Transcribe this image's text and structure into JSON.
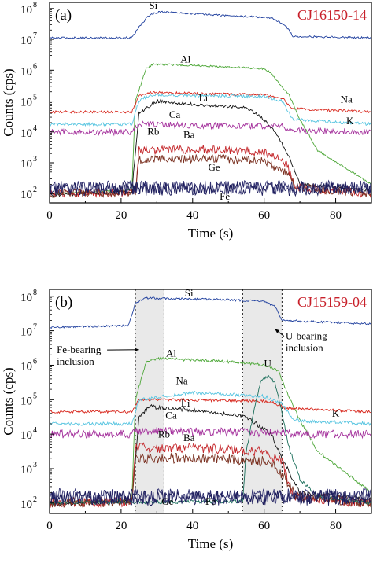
{
  "chart_data": [
    {
      "type": "line",
      "panel_label": "(a)",
      "sample_label": "CJ16150-14",
      "xlabel": "Time (s)",
      "ylabel": "Counts (cps)",
      "xlim": [
        0,
        90
      ],
      "ylim_log10": [
        1.7,
        8.2
      ],
      "y_scale": "log",
      "x_ticks": [
        "0",
        "20",
        "40",
        "60",
        "80"
      ],
      "y_ticks": [
        {
          "base": "10",
          "exp": "2"
        },
        {
          "base": "10",
          "exp": "3"
        },
        {
          "base": "10",
          "exp": "4"
        },
        {
          "base": "10",
          "exp": "5"
        },
        {
          "base": "10",
          "exp": "6"
        },
        {
          "base": "10",
          "exp": "7"
        },
        {
          "base": "10",
          "exp": "8"
        }
      ],
      "grid": false,
      "shaded_regions": [],
      "annotations": [],
      "series": [
        {
          "name": "Si",
          "color": "#1f3f9e",
          "label_x": 29,
          "label_y": 8.0,
          "noise": 0.03,
          "points": [
            [
              0,
              7.05
            ],
            [
              23,
              7.05
            ],
            [
              25,
              7.4
            ],
            [
              28,
              7.8
            ],
            [
              31,
              7.9
            ],
            [
              45,
              7.8
            ],
            [
              62,
              7.7
            ],
            [
              66,
              7.45
            ],
            [
              68,
              7.1
            ],
            [
              90,
              7.05
            ]
          ]
        },
        {
          "name": "Al",
          "color": "#4fa83a",
          "label_x": 38,
          "label_y": 6.25,
          "noise": 0.03,
          "points": [
            [
              0,
              2.0
            ],
            [
              23,
              2.1
            ],
            [
              24,
              5.0
            ],
            [
              27,
              6.05
            ],
            [
              29,
              6.2
            ],
            [
              40,
              6.15
            ],
            [
              60,
              6.05
            ],
            [
              62,
              5.9
            ],
            [
              64,
              5.6
            ],
            [
              67,
              5.2
            ],
            [
              70,
              4.4
            ],
            [
              75,
              3.4
            ],
            [
              90,
              2.3
            ]
          ]
        },
        {
          "name": "Na",
          "color": "#d8281e",
          "label_x": 83,
          "label_y": 4.95,
          "noise": 0.04,
          "points": [
            [
              0,
              4.65
            ],
            [
              23,
              4.65
            ],
            [
              25,
              5.15
            ],
            [
              28,
              5.28
            ],
            [
              60,
              5.2
            ],
            [
              65,
              5.1
            ],
            [
              68,
              4.75
            ],
            [
              90,
              4.65
            ]
          ]
        },
        {
          "name": "K",
          "color": "#55c4e0",
          "label_x": 84,
          "label_y": 4.25,
          "noise": 0.05,
          "points": [
            [
              0,
              4.25
            ],
            [
              23,
              4.25
            ],
            [
              25,
              5.0
            ],
            [
              28,
              5.2
            ],
            [
              60,
              5.15
            ],
            [
              65,
              5.0
            ],
            [
              68,
              4.4
            ],
            [
              90,
              4.25
            ]
          ]
        },
        {
          "name": "Li",
          "color": "#111111",
          "label_x": 43,
          "label_y": 5.0,
          "noise": 0.05,
          "points": [
            [
              0,
              1.95
            ],
            [
              23,
              2.05
            ],
            [
              25,
              4.6
            ],
            [
              30,
              5.0
            ],
            [
              45,
              4.85
            ],
            [
              55,
              4.8
            ],
            [
              60,
              4.4
            ],
            [
              63,
              4.0
            ],
            [
              67,
              3.2
            ],
            [
              70,
              2.3
            ],
            [
              90,
              2.1
            ]
          ]
        },
        {
          "name": "Ca",
          "color": "#a4309c",
          "label_x": 35,
          "label_y": 4.45,
          "noise": 0.1,
          "points": [
            [
              0,
              4.0
            ],
            [
              23,
              4.0
            ],
            [
              25,
              4.25
            ],
            [
              45,
              4.2
            ],
            [
              65,
              4.2
            ],
            [
              68,
              4.05
            ],
            [
              90,
              4.0
            ]
          ]
        },
        {
          "name": "Rb",
          "color": "#c4262a",
          "label_x": 29,
          "label_y": 3.9,
          "noise": 0.14,
          "points": [
            [
              0,
              2.0
            ],
            [
              24,
              2.05
            ],
            [
              25,
              3.4
            ],
            [
              45,
              3.45
            ],
            [
              60,
              3.35
            ],
            [
              66,
              3.0
            ],
            [
              69,
              2.2
            ],
            [
              90,
              2.0
            ]
          ]
        },
        {
          "name": "Ba",
          "color": "#7a3020",
          "label_x": 39,
          "label_y": 3.8,
          "noise": 0.14,
          "points": [
            [
              0,
              2.0
            ],
            [
              24,
              2.05
            ],
            [
              25,
              3.1
            ],
            [
              45,
              3.15
            ],
            [
              60,
              3.05
            ],
            [
              66,
              2.7
            ],
            [
              69,
              2.2
            ],
            [
              90,
              2.0
            ]
          ]
        },
        {
          "name": "Ge",
          "color": "#303070",
          "label_x": 46,
          "label_y": 2.75,
          "noise": 0.22,
          "points": [
            [
              0,
              2.2
            ],
            [
              90,
              2.2
            ]
          ]
        },
        {
          "name": "Fe",
          "color": "#1c1c5a",
          "label_x": 49,
          "label_y": 1.8,
          "noise": 0.22,
          "points": [
            [
              0,
              2.15
            ],
            [
              90,
              2.15
            ]
          ]
        }
      ]
    },
    {
      "type": "line",
      "panel_label": "(b)",
      "sample_label": "CJ15159-04",
      "xlabel": "Time (s)",
      "ylabel": "Counts (cps)",
      "xlim": [
        0,
        90
      ],
      "ylim_log10": [
        1.7,
        8.2
      ],
      "y_scale": "log",
      "x_ticks": [
        "0",
        "20",
        "40",
        "60",
        "80"
      ],
      "y_ticks": [
        {
          "base": "10",
          "exp": "2"
        },
        {
          "base": "10",
          "exp": "3"
        },
        {
          "base": "10",
          "exp": "4"
        },
        {
          "base": "10",
          "exp": "5"
        },
        {
          "base": "10",
          "exp": "6"
        },
        {
          "base": "10",
          "exp": "7"
        },
        {
          "base": "10",
          "exp": "8"
        }
      ],
      "grid": false,
      "shaded_regions": [
        [
          24,
          32
        ],
        [
          54,
          65
        ]
      ],
      "annotations": [
        {
          "text_lines": [
            "Fe-bearing",
            "inclusion"
          ],
          "x": 2,
          "y": 6.35,
          "arrow_to_x": 25,
          "arrow_to_y": 6.45
        },
        {
          "text_lines": [
            "U-bearing",
            "inclusion"
          ],
          "x": 66,
          "y": 6.75,
          "arrow_to_x": 63,
          "arrow_to_y": 7.05
        }
      ],
      "series": [
        {
          "name": "Si",
          "color": "#1f3f9e",
          "label_x": 39,
          "label_y": 8.0,
          "noise": 0.03,
          "points": [
            [
              0,
              7.1
            ],
            [
              22,
              7.15
            ],
            [
              24,
              7.8
            ],
            [
              27,
              7.95
            ],
            [
              50,
              7.9
            ],
            [
              60,
              7.85
            ],
            [
              63,
              7.7
            ],
            [
              65,
              7.3
            ],
            [
              90,
              7.2
            ]
          ]
        },
        {
          "name": "Al",
          "color": "#4fa83a",
          "label_x": 34,
          "label_y": 6.25,
          "noise": 0.04,
          "points": [
            [
              0,
              2.0
            ],
            [
              23,
              2.1
            ],
            [
              24,
              5.0
            ],
            [
              27,
              6.1
            ],
            [
              30,
              6.2
            ],
            [
              50,
              6.1
            ],
            [
              60,
              6.0
            ],
            [
              64,
              5.85
            ],
            [
              66,
              5.3
            ],
            [
              70,
              4.4
            ],
            [
              75,
              3.5
            ],
            [
              90,
              2.3
            ]
          ]
        },
        {
          "name": "Na",
          "color": "#d8281e",
          "label_x": 37,
          "label_y": 5.45,
          "noise": 0.04,
          "points": [
            [
              0,
              4.65
            ],
            [
              23,
              4.65
            ],
            [
              25,
              5.0
            ],
            [
              50,
              4.98
            ],
            [
              62,
              4.95
            ],
            [
              66,
              4.75
            ],
            [
              90,
              4.65
            ]
          ]
        },
        {
          "name": "K",
          "color": "#55c4e0",
          "label_x": 80,
          "label_y": 4.5,
          "noise": 0.05,
          "points": [
            [
              0,
              4.3
            ],
            [
              23,
              4.3
            ],
            [
              25,
              5.0
            ],
            [
              40,
              5.2
            ],
            [
              60,
              5.1
            ],
            [
              65,
              4.9
            ],
            [
              68,
              4.4
            ],
            [
              90,
              4.3
            ]
          ]
        },
        {
          "name": "Li",
          "color": "#111111",
          "label_x": 38,
          "label_y": 4.8,
          "noise": 0.06,
          "points": [
            [
              0,
              1.95
            ],
            [
              23,
              2.05
            ],
            [
              25,
              4.5
            ],
            [
              28,
              4.8
            ],
            [
              40,
              4.7
            ],
            [
              55,
              4.5
            ],
            [
              62,
              4.0
            ],
            [
              65,
              3.3
            ],
            [
              70,
              2.3
            ],
            [
              90,
              2.1
            ]
          ]
        },
        {
          "name": "Ca",
          "color": "#a4309c",
          "label_x": 34,
          "label_y": 4.45,
          "noise": 0.12,
          "points": [
            [
              0,
              4.0
            ],
            [
              23,
              4.0
            ],
            [
              25,
              4.1
            ],
            [
              60,
              4.05
            ],
            [
              65,
              4.0
            ],
            [
              90,
              4.0
            ]
          ]
        },
        {
          "name": "Rb",
          "color": "#c4262a",
          "label_x": 32,
          "label_y": 3.9,
          "noise": 0.15,
          "points": [
            [
              0,
              2.0
            ],
            [
              23,
              2.05
            ],
            [
              24,
              3.6
            ],
            [
              40,
              3.6
            ],
            [
              60,
              3.5
            ],
            [
              65,
              3.2
            ],
            [
              68,
              2.2
            ],
            [
              90,
              2.0
            ]
          ]
        },
        {
          "name": "Ba",
          "color": "#7a3020",
          "label_x": 39,
          "label_y": 3.8,
          "noise": 0.15,
          "points": [
            [
              0,
              2.0
            ],
            [
              23,
              2.05
            ],
            [
              24,
              3.3
            ],
            [
              45,
              3.3
            ],
            [
              62,
              3.2
            ],
            [
              66,
              2.7
            ],
            [
              69,
              2.2
            ],
            [
              90,
              2.0
            ]
          ]
        },
        {
          "name": "U",
          "color": "#1a6e5a",
          "label_x": 61,
          "label_y": 5.95,
          "noise": 0.05,
          "points": [
            [
              0,
              2.0
            ],
            [
              54,
              2.05
            ],
            [
              55,
              3.5
            ],
            [
              57,
              4.6
            ],
            [
              59,
              5.5
            ],
            [
              61,
              5.7
            ],
            [
              63,
              5.5
            ],
            [
              65,
              4.6
            ],
            [
              67,
              3.6
            ],
            [
              70,
              2.7
            ],
            [
              75,
              2.2
            ],
            [
              90,
              2.0
            ]
          ]
        },
        {
          "name": "Ge",
          "color": "#303070",
          "label_x": 33,
          "label_y": 1.95,
          "noise": 0.22,
          "points": [
            [
              0,
              2.2
            ],
            [
              90,
              2.2
            ]
          ]
        },
        {
          "name": "Fe",
          "color": "#1c1c5a",
          "label_x": 45,
          "label_y": 1.95,
          "noise": 0.22,
          "points": [
            [
              0,
              2.15
            ],
            [
              90,
              2.15
            ]
          ]
        }
      ]
    }
  ]
}
